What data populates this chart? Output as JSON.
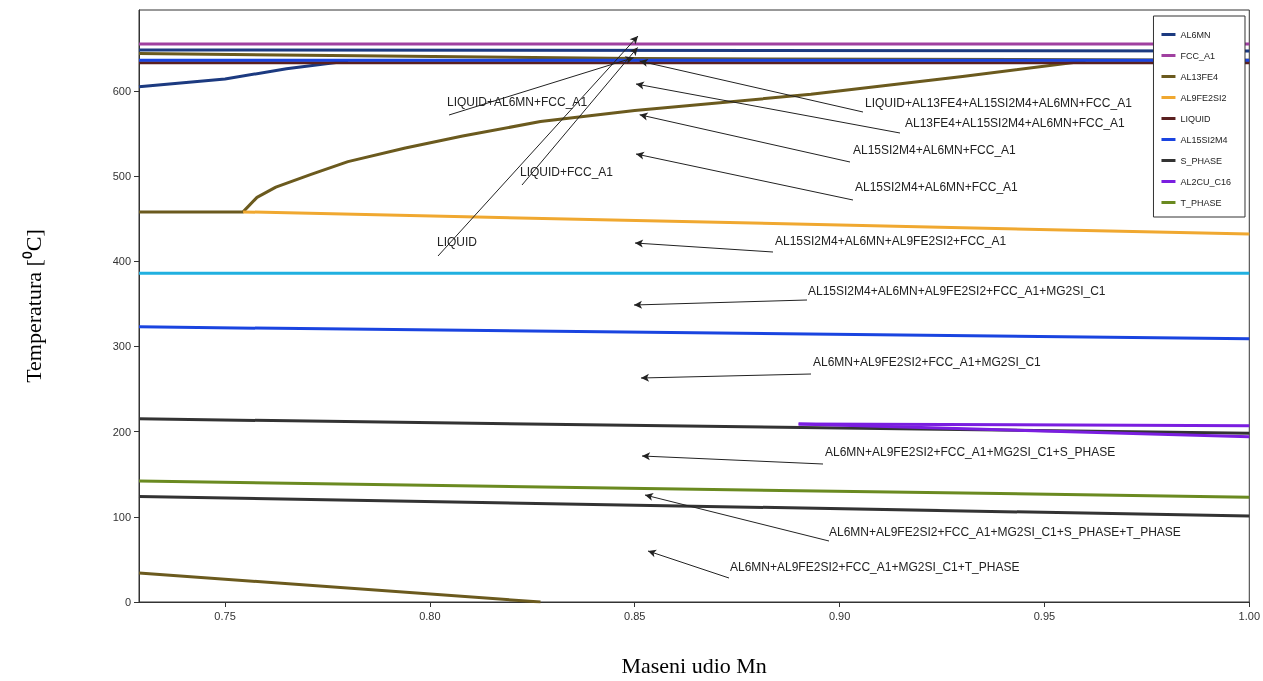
{
  "chart_data": {
    "type": "line",
    "xlabel": "Maseni udio Mn",
    "ylabel": "Temperatura [⁰C]",
    "xlim": [
      0.729,
      1.0
    ],
    "ylim": [
      0,
      695
    ],
    "xticks": [
      0.75,
      {
        "value": 0.8,
        "label": "0.80"
      },
      0.85,
      {
        "value": 0.9,
        "label": "0.90"
      },
      0.95,
      {
        "value": 1.0,
        "label": "1.00"
      }
    ],
    "yticks": [
      0,
      100,
      200,
      300,
      400,
      500,
      600
    ],
    "legend": "top right",
    "series": [
      {
        "name": "AL6MN",
        "color": "#1c3a80",
        "x": [
          0.729,
          1.0
        ],
        "values": [
          648,
          647
        ]
      },
      {
        "color": "#1c3a80",
        "x": [
          0.729,
          0.75,
          0.765,
          0.78
        ],
        "values": [
          605,
          614,
          626,
          635
        ]
      },
      {
        "name": "FCC_A1",
        "color": "#a040a0",
        "x": [
          0.729,
          1.0
        ],
        "values": [
          655,
          655
        ]
      },
      {
        "name": "AL13FE4",
        "color": "#6b5a1e",
        "x": [
          0.729,
          0.85,
          1.0
        ],
        "values": [
          644,
          638,
          636
        ]
      },
      {
        "color": "#6b5a1e",
        "x": [
          0.729,
          0.7544,
          0.7578,
          0.7624,
          0.771,
          0.78,
          0.794,
          0.808,
          0.827,
          0.85,
          0.893,
          0.93,
          0.96
        ],
        "values": [
          458,
          458,
          475,
          487,
          502,
          517,
          533,
          547,
          564,
          577,
          596,
          617,
          635
        ]
      },
      {
        "color": "#6b5a1e",
        "x": [
          0.729,
          0.827
        ],
        "values": [
          34,
          0
        ]
      },
      {
        "name": "AL9FE2SI2",
        "color": "#f0a830",
        "x": [
          0.7544,
          1.0
        ],
        "values": [
          458,
          432
        ]
      },
      {
        "name": "LIQUID",
        "color": "#5a2020",
        "x": [
          0.729,
          1.0
        ],
        "values": [
          633,
          633
        ]
      },
      {
        "name": "AL15SI2M4",
        "color": "#1a44e0",
        "x": [
          0.729,
          1.0
        ],
        "values": [
          636,
          636
        ]
      },
      {
        "color": "#1a44e0",
        "x": [
          0.729,
          1.0
        ],
        "values": [
          323,
          309
        ]
      },
      {
        "name": "S_PHASE",
        "color": "#333333",
        "x": [
          0.729,
          1.0
        ],
        "values": [
          215,
          198
        ]
      },
      {
        "color": "#333333",
        "x": [
          0.729,
          1.0
        ],
        "values": [
          124,
          101
        ]
      },
      {
        "name": "AL2CU_C16",
        "color": "#7a1ee0",
        "x": [
          0.89,
          1.0
        ],
        "values": [
          209,
          207
        ]
      },
      {
        "color": "#7a1ee0",
        "x": [
          0.89,
          1.0
        ],
        "values": [
          209,
          194
        ]
      },
      {
        "name": "T_PHASE",
        "color": "#6a8a20",
        "x": [
          0.729,
          1.0
        ],
        "values": [
          142,
          123
        ]
      },
      {
        "color": "#20b0e0",
        "x": [
          0.729,
          1.0
        ],
        "values": [
          386,
          386
        ]
      }
    ],
    "annotations": [
      {
        "text": "LIQUID+AL6MN+FCC_A1",
        "x": 0.8497,
        "y": 639
      },
      {
        "text": "LIQUID+FCC_A1",
        "x": 0.8507,
        "y": 651
      },
      "LIQUID",
      {
        "text": "LIQUID+AL13FE4+AL15SI2M4+AL6MN+FCC_A1",
        "x": 0.8512,
        "y": 635
      },
      "AL13FE4+AL15SI2M4+AL6MN+FCC_A1",
      {
        "text": "AL15SI2M4+AL6MN+FCC_A1",
        "x": 0.8512,
        "y": 572
      },
      "AL15SI2M4+AL6MN+FCC_A1",
      "AL15SI2M4+AL6MN+AL9FE2SI2+FCC_A1",
      "AL15SI2M4+AL6MN+AL9FE2SI2+FCC_A1+MG2SI_C1",
      "AL6MN+AL9FE2SI2+FCC_A1+MG2SI_C1",
      "AL6MN+AL9FE2SI2+FCC_A1+MG2SI_C1+S_PHASE",
      "AL6MN+AL9FE2SI2+FCC_A1+MG2SI_C1+S_PHASE+T_PHASE",
      "AL6MN+AL9FE2SI2+FCC_A1+MG2SI_C1+T_PHASE"
    ]
  }
}
